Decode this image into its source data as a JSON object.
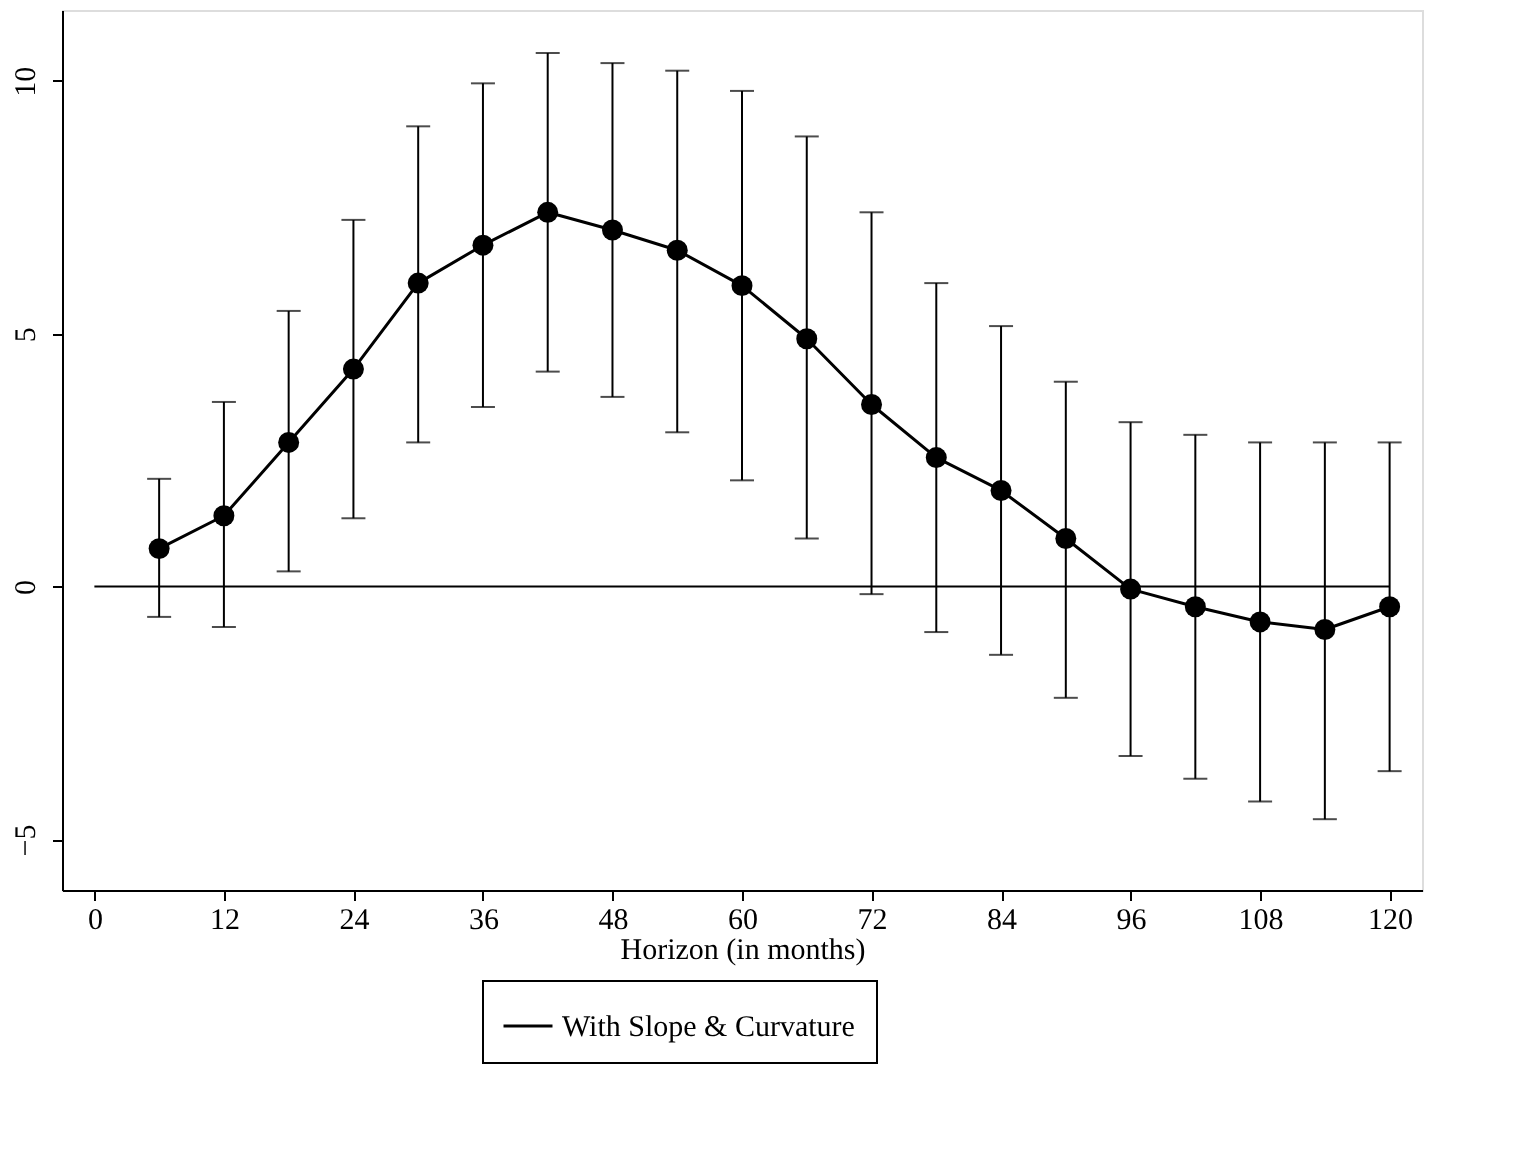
{
  "chart_data": {
    "type": "line",
    "xlabel": "Horizon (in months)",
    "x": [
      6,
      12,
      18,
      24,
      30,
      36,
      42,
      48,
      54,
      60,
      66,
      72,
      78,
      84,
      90,
      96,
      102,
      108,
      114,
      120
    ],
    "series": [
      {
        "name": "With Slope & Curvature",
        "color": "#000000",
        "values": [
          0.75,
          1.4,
          2.85,
          4.3,
          6.0,
          6.75,
          7.4,
          7.05,
          6.65,
          5.95,
          4.9,
          3.6,
          2.55,
          1.9,
          0.95,
          -0.05,
          -0.4,
          -0.7,
          -0.85,
          -0.4
        ],
        "errors": [
          [
            -0.6,
            2.13
          ],
          [
            -0.8,
            3.65
          ],
          [
            0.3,
            5.45
          ],
          [
            1.35,
            7.25
          ],
          [
            2.85,
            9.1
          ],
          [
            3.55,
            9.95
          ],
          [
            4.25,
            10.55
          ],
          [
            3.75,
            10.35
          ],
          [
            3.05,
            10.2
          ],
          [
            2.1,
            9.8
          ],
          [
            0.95,
            8.9
          ],
          [
            -0.15,
            7.4
          ],
          [
            -0.9,
            6.0
          ],
          [
            -1.35,
            5.15
          ],
          [
            -2.2,
            4.05
          ],
          [
            -3.35,
            3.25
          ],
          [
            -3.8,
            3.0
          ],
          [
            -4.25,
            2.85
          ],
          [
            -4.6,
            2.85
          ],
          [
            -3.65,
            2.85
          ]
        ]
      }
    ],
    "xlim": [
      -3,
      123
    ],
    "xticks": [
      0,
      12,
      24,
      36,
      48,
      60,
      72,
      84,
      96,
      108,
      120
    ],
    "ylim": [
      -6,
      11.4
    ],
    "yticks": [
      -5,
      0,
      5,
      10
    ],
    "ref_lines": [
      {
        "axis": "y",
        "value": 0,
        "color": "#000000"
      }
    ],
    "marker": "circle",
    "line_style": "solid",
    "grid": false,
    "legend": "bottom"
  }
}
